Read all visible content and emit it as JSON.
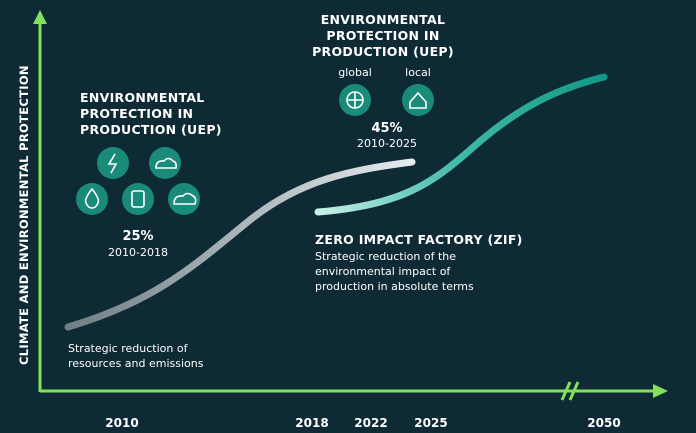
{
  "y_axis_label": "CLIMATE AND ENVIRONMENTAL PROTECTION",
  "x_axis_labels": [
    "2010",
    "2018",
    "2022",
    "2025",
    "2050"
  ],
  "uep_2018": {
    "title": [
      "ENVIRONMENTAL",
      "PROTECTION IN",
      "PRODUCTION (UEP)"
    ],
    "percent": "25%",
    "period": "2010-2018",
    "note": [
      "Strategic reduction of",
      "resources and emissions"
    ]
  },
  "uep_2025": {
    "title": [
      "ENVIRONMENTAL",
      "PROTECTION IN",
      "PRODUCTION (UEP)"
    ],
    "scopes": [
      "global",
      "local"
    ],
    "percent": "45%",
    "period": "2010-2025"
  },
  "zif": {
    "title": "ZERO IMPACT FACTORY (ZIF)",
    "note": [
      "Strategic reduction of the",
      "environmental impact of",
      "production in absolute terms"
    ]
  }
}
